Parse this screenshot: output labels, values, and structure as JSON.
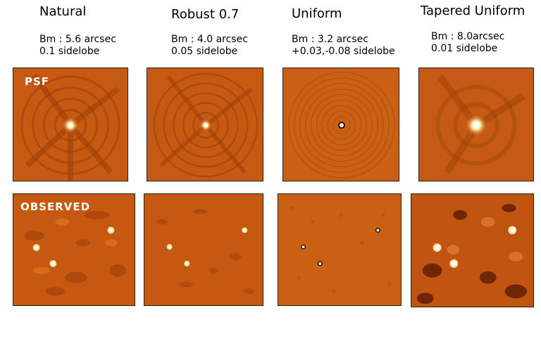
{
  "columns": [
    {
      "title": "Natural",
      "beam": "Bm : 5.6 arcsec",
      "sidelobe": "0.1 sidelobe"
    },
    {
      "title": "Robust 0.7",
      "beam": "Bm : 4.0 arcsec",
      "sidelobe": "0.05 sidelobe"
    },
    {
      "title": "Uniform",
      "beam": "Bm : 3.2 arcsec",
      "sidelobe": "+0.03,-0.08 sidelobe"
    },
    {
      "title": "Tapered Uniform",
      "beam": "Bm : 8.0arcsec",
      "sidelobe": "0.01 sidelobe"
    }
  ],
  "rows": {
    "psf": "PSF",
    "observed": "OBSERVED"
  },
  "colors": {
    "background": "#c75a12",
    "bright": "#ffffff",
    "dark": "#4a1402"
  }
}
